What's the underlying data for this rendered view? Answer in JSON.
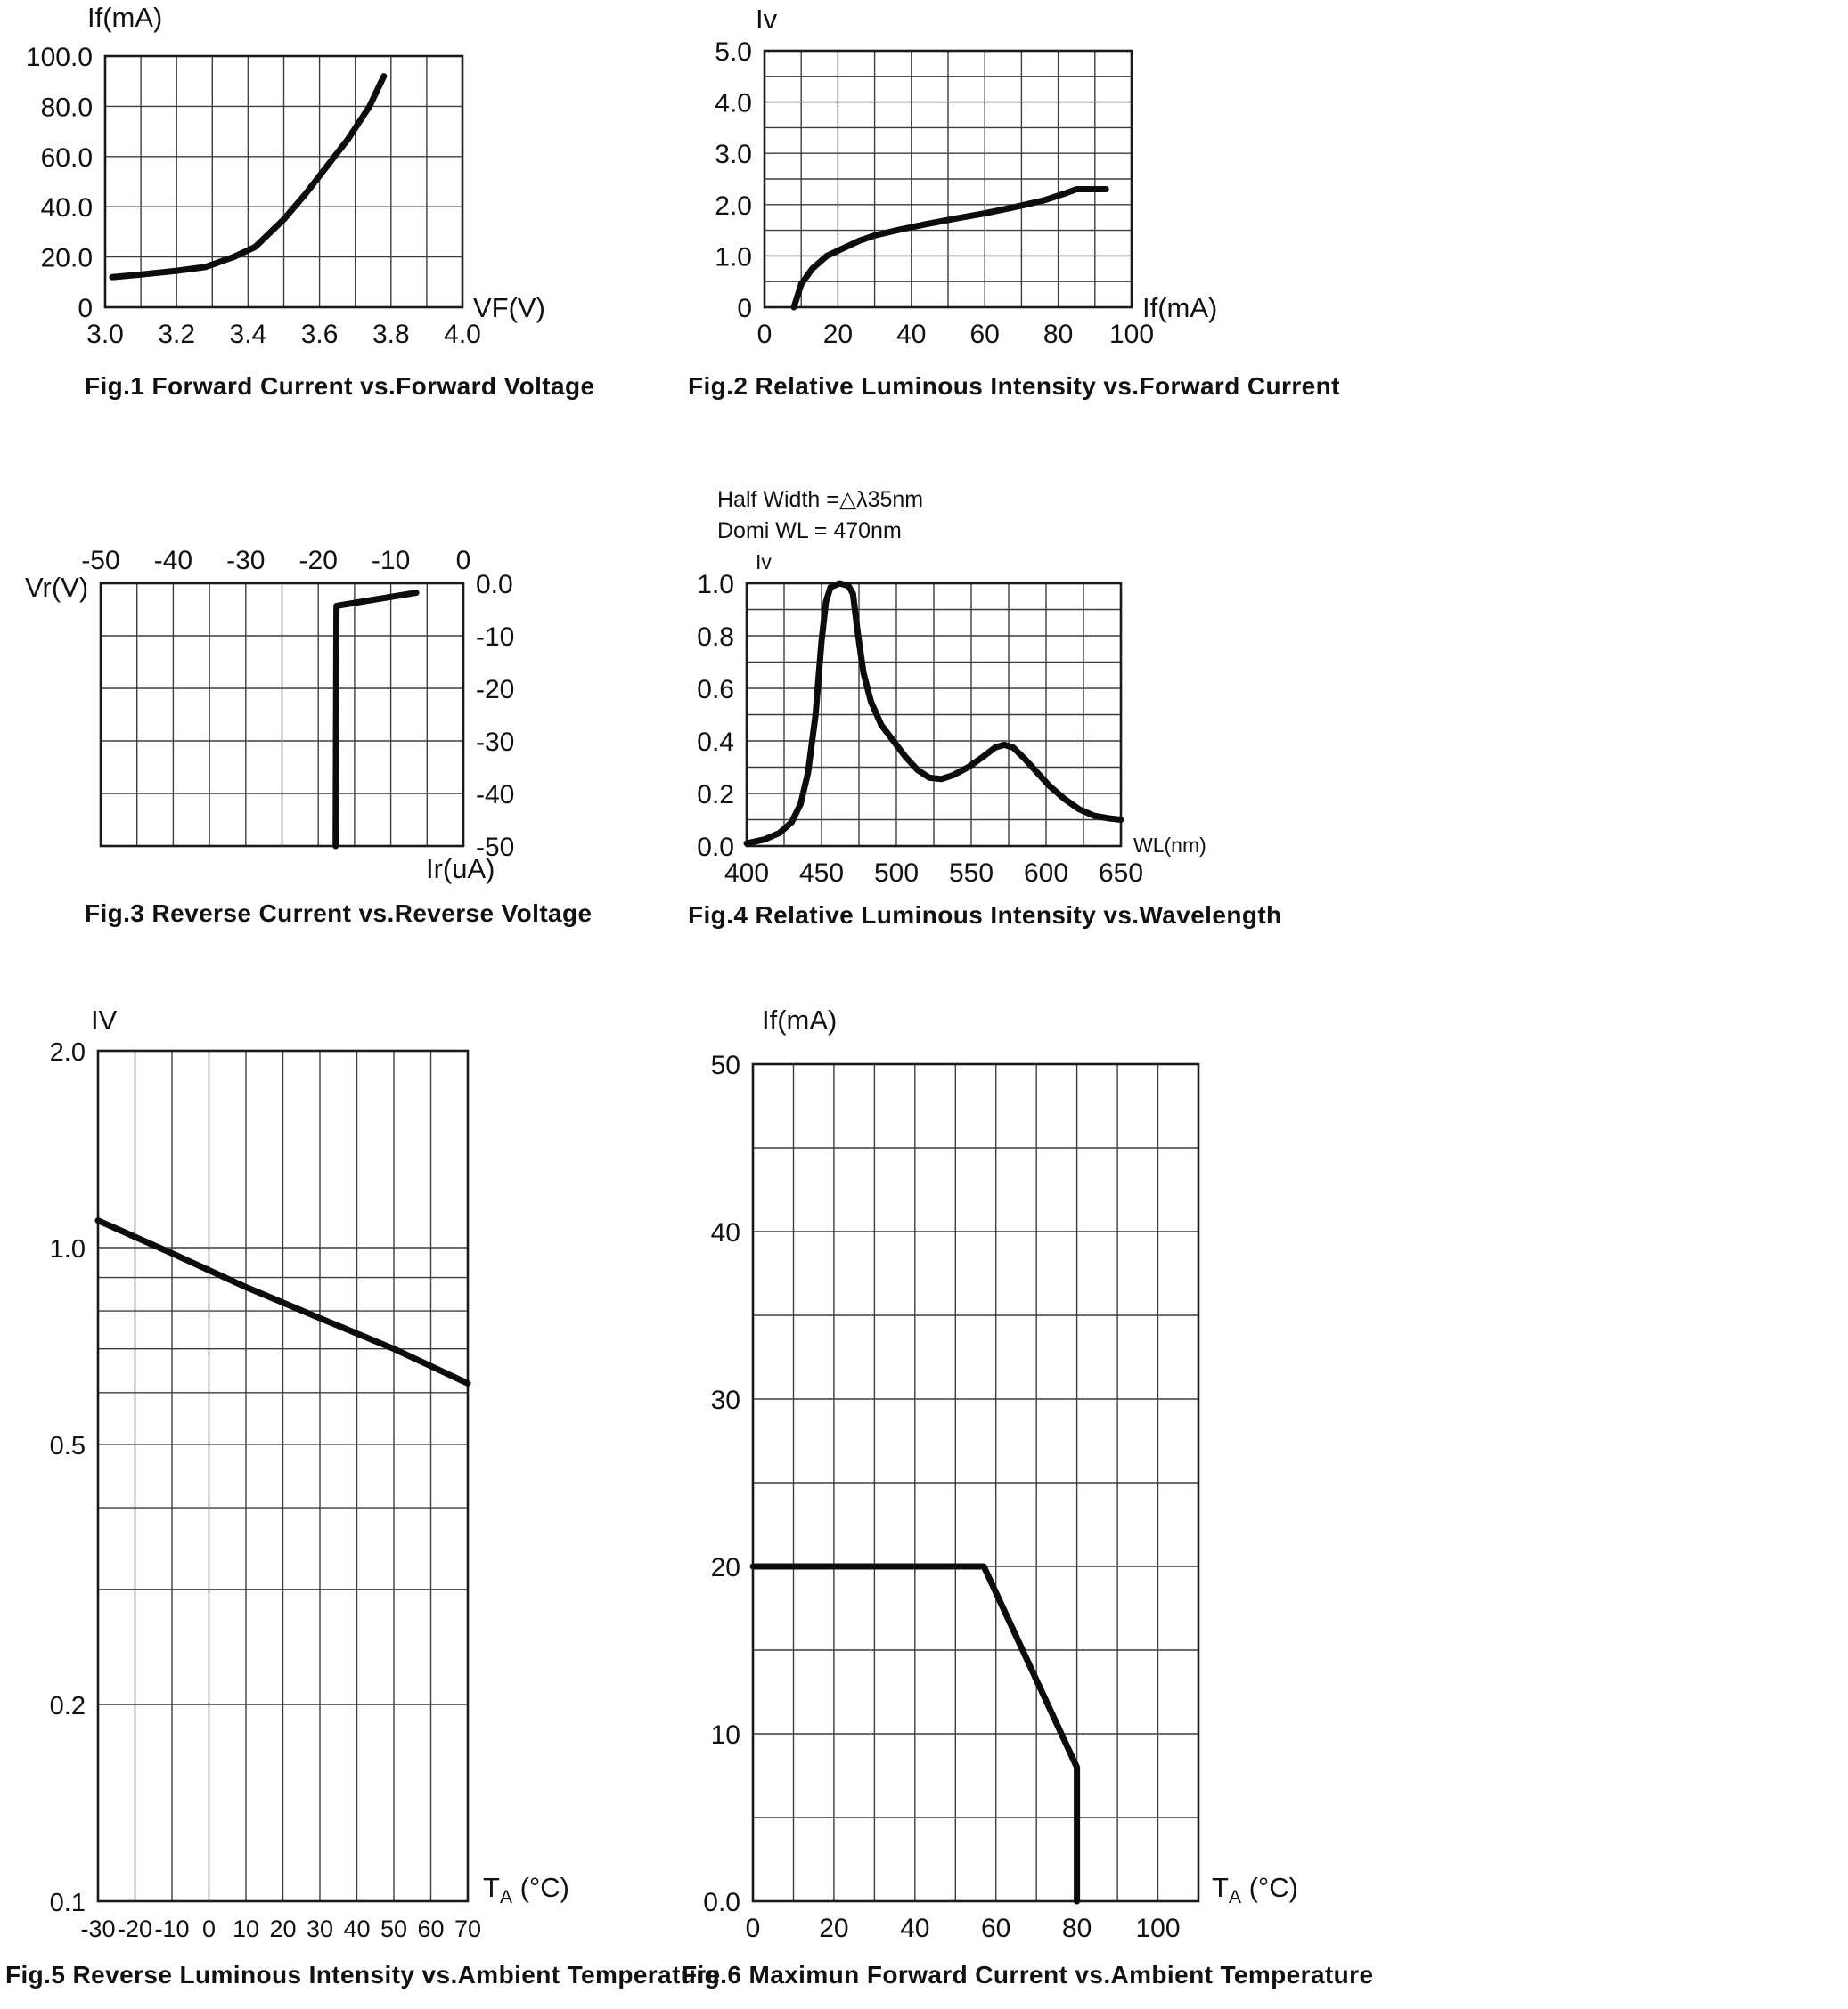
{
  "page": {
    "background": "#ffffff",
    "line_color": "#0c0c0c",
    "grid_color": "#3d3d3d"
  },
  "chart_data": [
    {
      "type": "line",
      "title": "Fig.1 Forward Current vs.Forward Voltage",
      "xlabel": "VF(V)",
      "ylabel": "If(mA)",
      "xlim": [
        3.0,
        4.0
      ],
      "ylim": [
        0,
        100
      ],
      "x_grid_step": 0.1,
      "y_grid_step": 20,
      "x_ticks": [
        3.0,
        3.2,
        3.4,
        3.6,
        3.8,
        4.0
      ],
      "x_tick_labels": [
        "3.0",
        "3.2",
        "3.4",
        "3.6",
        "3.8",
        "4.0"
      ],
      "y_ticks": [
        0,
        20,
        40,
        60,
        80,
        100
      ],
      "y_tick_labels": [
        "0",
        "20.0",
        "40.0",
        "60.0",
        "80.0",
        "100.0"
      ],
      "y_scale": "linear",
      "series": [
        {
          "name": "forward-current",
          "points": [
            [
              3.02,
              12
            ],
            [
              3.1,
              13
            ],
            [
              3.2,
              14.5
            ],
            [
              3.28,
              16
            ],
            [
              3.36,
              20
            ],
            [
              3.42,
              24
            ],
            [
              3.5,
              35
            ],
            [
              3.56,
              45
            ],
            [
              3.62,
              56
            ],
            [
              3.68,
              67
            ],
            [
              3.74,
              80
            ],
            [
              3.78,
              92
            ]
          ]
        }
      ]
    },
    {
      "type": "line",
      "title": "Fig.2 Relative Luminous Intensity vs.Forward Current",
      "xlabel": "If(mA)",
      "ylabel": "Iv",
      "xlim": [
        0,
        100
      ],
      "ylim": [
        0,
        5
      ],
      "x_grid_step": 10,
      "y_grid_step": 0.5,
      "x_ticks": [
        0,
        20,
        40,
        60,
        80,
        100
      ],
      "x_tick_labels": [
        "0",
        "20",
        "40",
        "60",
        "80",
        "100"
      ],
      "y_ticks": [
        0,
        1,
        2,
        3,
        4,
        5
      ],
      "y_tick_labels": [
        "0",
        "1.0",
        "2.0",
        "3.0",
        "4.0",
        "5.0"
      ],
      "y_scale": "linear",
      "series": [
        {
          "name": "luminous-intensity",
          "points": [
            [
              8,
              0
            ],
            [
              10,
              0.45
            ],
            [
              13,
              0.75
            ],
            [
              17,
              1.0
            ],
            [
              20,
              1.1
            ],
            [
              26,
              1.3
            ],
            [
              30,
              1.4
            ],
            [
              36,
              1.5
            ],
            [
              44,
              1.62
            ],
            [
              52,
              1.73
            ],
            [
              60,
              1.83
            ],
            [
              68,
              1.95
            ],
            [
              76,
              2.08
            ],
            [
              82,
              2.22
            ],
            [
              85,
              2.3
            ],
            [
              93,
              2.3
            ]
          ]
        }
      ]
    },
    {
      "type": "line",
      "title": "Fig.3 Reverse Current vs.Reverse Voltage",
      "xlabel": "Vr(V)",
      "ylabel": "Ir(uA)",
      "xlim": [
        -50,
        0
      ],
      "ylim": [
        -50,
        0
      ],
      "x_grid_step": 5,
      "y_grid_step": 10,
      "x_ticks": [
        -50,
        -40,
        -30,
        -20,
        -10,
        0
      ],
      "x_tick_labels": [
        "-50",
        "-40",
        "-30",
        "-20",
        "-10",
        "0"
      ],
      "y_ticks": [
        0,
        -10,
        -20,
        -30,
        -40,
        -50
      ],
      "y_tick_labels": [
        "0.0",
        "-10",
        "-20",
        "-30",
        "-40",
        "-50"
      ],
      "y_scale": "linear",
      "series": [
        {
          "name": "reverse-current",
          "points": [
            [
              -6.5,
              -1.8
            ],
            [
              -17.5,
              -4.3
            ],
            [
              -17.6,
              -50
            ]
          ]
        }
      ]
    },
    {
      "type": "line",
      "title": "Fig.4 Relative Luminous Intensity vs.Wavelength",
      "xlabel": "WL(nm)",
      "ylabel": "Iv",
      "annotations": [
        "Half Width =△λ35nm",
        "Domi WL = 470nm"
      ],
      "xlim": [
        400,
        650
      ],
      "ylim": [
        0,
        1
      ],
      "x_grid_step": 25,
      "y_grid_step": 0.1,
      "x_ticks": [
        400,
        450,
        500,
        550,
        600,
        650
      ],
      "x_tick_labels": [
        "400",
        "450",
        "500",
        "550",
        "600",
        "650"
      ],
      "y_ticks": [
        0,
        0.2,
        0.4,
        0.6,
        0.8,
        1.0
      ],
      "y_tick_labels": [
        "0.0",
        "0.2",
        "0.4",
        "0.6",
        "0.8",
        "1.0"
      ],
      "y_scale": "linear",
      "series": [
        {
          "name": "spectrum",
          "points": [
            [
              400,
              0.01
            ],
            [
              412,
              0.025
            ],
            [
              422,
              0.05
            ],
            [
              430,
              0.09
            ],
            [
              436,
              0.16
            ],
            [
              441,
              0.28
            ],
            [
              446,
              0.5
            ],
            [
              450,
              0.78
            ],
            [
              453,
              0.93
            ],
            [
              456,
              0.985
            ],
            [
              462,
              1.0
            ],
            [
              468,
              0.99
            ],
            [
              471,
              0.96
            ],
            [
              474,
              0.82
            ],
            [
              478,
              0.66
            ],
            [
              483,
              0.55
            ],
            [
              490,
              0.46
            ],
            [
              498,
              0.4
            ],
            [
              506,
              0.34
            ],
            [
              514,
              0.29
            ],
            [
              522,
              0.26
            ],
            [
              530,
              0.255
            ],
            [
              538,
              0.27
            ],
            [
              548,
              0.3
            ],
            [
              558,
              0.34
            ],
            [
              566,
              0.375
            ],
            [
              572,
              0.385
            ],
            [
              578,
              0.375
            ],
            [
              586,
              0.33
            ],
            [
              594,
              0.28
            ],
            [
              602,
              0.23
            ],
            [
              612,
              0.18
            ],
            [
              622,
              0.14
            ],
            [
              632,
              0.115
            ],
            [
              642,
              0.105
            ],
            [
              650,
              0.1
            ]
          ]
        }
      ]
    },
    {
      "type": "line",
      "title": "Fig.5 Reverse Luminous Intensity vs.Ambient Temperature",
      "xlabel": "TA (°C)",
      "xlabel_parts": {
        "main": "T",
        "sub": "A",
        "rest": " (°C)"
      },
      "ylabel": "IV",
      "xlim": [
        -30,
        70
      ],
      "ylim": [
        0.1,
        2.0
      ],
      "x_grid_step": 10,
      "y_grid_values": [
        0.1,
        0.2,
        0.3,
        0.4,
        0.5,
        0.6,
        0.7,
        0.8,
        0.9,
        1.0,
        2.0
      ],
      "x_ticks": [
        -30,
        -20,
        -10,
        0,
        10,
        20,
        30,
        40,
        50,
        60,
        70
      ],
      "x_tick_labels": [
        "-30",
        "-20",
        "-10",
        "0",
        "10",
        "20",
        "30",
        "40",
        "50",
        "60",
        "70"
      ],
      "y_ticks": [
        2.0,
        1.0,
        0.5,
        0.2,
        0.1
      ],
      "y_tick_labels": [
        "2.0",
        "1.0",
        "0.5",
        "0.2",
        "0.1"
      ],
      "y_scale": "log",
      "series": [
        {
          "name": "iv-vs-temp",
          "points": [
            [
              -30,
              1.1
            ],
            [
              -10,
              0.98
            ],
            [
              10,
              0.87
            ],
            [
              30,
              0.78
            ],
            [
              50,
              0.7
            ],
            [
              70,
              0.62
            ]
          ]
        }
      ]
    },
    {
      "type": "line",
      "title": "Fig.6 Maximun Forward Current vs.Ambient Temperature",
      "xlabel": "TA (°C)",
      "xlabel_parts": {
        "main": "T",
        "sub": "A",
        "rest": " (°C)"
      },
      "ylabel": "If(mA)",
      "xlim": [
        0,
        110
      ],
      "ylim": [
        0,
        50
      ],
      "x_grid_step": 10,
      "y_grid_step": 5,
      "x_ticks": [
        0,
        20,
        40,
        60,
        80,
        100
      ],
      "x_tick_labels": [
        "0",
        "20",
        "40",
        "60",
        "80",
        "100"
      ],
      "y_ticks": [
        0,
        10,
        20,
        30,
        40,
        50
      ],
      "y_tick_labels": [
        "0.0",
        "10",
        "20",
        "30",
        "40",
        "50"
      ],
      "y_scale": "linear",
      "series": [
        {
          "name": "max-forward-current",
          "points": [
            [
              0,
              20
            ],
            [
              57,
              20
            ],
            [
              80,
              8
            ],
            [
              80,
              0
            ]
          ]
        }
      ]
    }
  ]
}
